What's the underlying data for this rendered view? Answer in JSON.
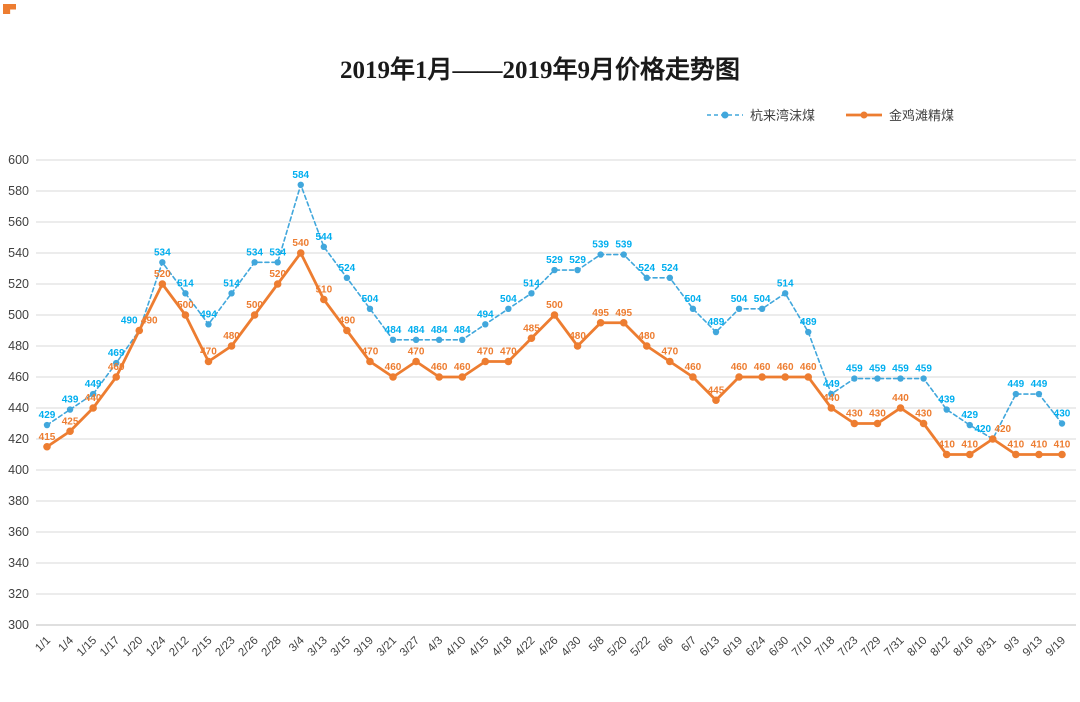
{
  "window": {
    "background": "#FFFFFF"
  },
  "corner_mark": {
    "color": "#ED7D31"
  },
  "title": "2019年1月——2019年9月价格走势图",
  "legend": {
    "position": "top-right",
    "items": [
      {
        "label": "杭来湾沫煤",
        "color": "#41A7DC",
        "style": "dashed"
      },
      {
        "label": "金鸡滩精煤",
        "color": "#ED7D31",
        "style": "solid"
      }
    ]
  },
  "chart_data": {
    "type": "line",
    "title": "2019年1月——2019年9月价格走势图",
    "categories": [
      "1/1",
      "1/4",
      "1/15",
      "1/17",
      "1/20",
      "1/24",
      "2/12",
      "2/15",
      "2/23",
      "2/26",
      "2/28",
      "3/4",
      "3/13",
      "3/15",
      "3/19",
      "3/21",
      "3/27",
      "4/3",
      "4/10",
      "4/15",
      "4/18",
      "4/22",
      "4/26",
      "4/30",
      "5/8",
      "5/20",
      "5/22",
      "6/6",
      "6/7",
      "6/13",
      "6/19",
      "6/24",
      "6/30",
      "7/10",
      "7/18",
      "7/23",
      "7/29",
      "7/31",
      "8/10",
      "8/12",
      "8/16",
      "8/31",
      "9/3",
      "9/13",
      "9/19"
    ],
    "series": [
      {
        "name": "杭来湾沫煤",
        "color": "#41A7DC",
        "label_color": "#00AEEF",
        "line_style": "dashed",
        "values": [
          429,
          439,
          449,
          469,
          490,
          534,
          514,
          494,
          514,
          534,
          534,
          584,
          544,
          524,
          504,
          484,
          484,
          484,
          484,
          494,
          504,
          514,
          529,
          529,
          539,
          539,
          524,
          524,
          504,
          489,
          504,
          504,
          514,
          489,
          449,
          459,
          459,
          459,
          459,
          439,
          429,
          420,
          449,
          449,
          430
        ]
      },
      {
        "name": "金鸡滩精煤",
        "color": "#ED7D31",
        "label_color": "#ED7D31",
        "line_style": "solid",
        "values": [
          415,
          425,
          440,
          460,
          490,
          520,
          500,
          470,
          480,
          500,
          520,
          540,
          510,
          490,
          470,
          460,
          470,
          460,
          460,
          470,
          470,
          485,
          500,
          480,
          495,
          495,
          480,
          470,
          460,
          445,
          460,
          460,
          460,
          460,
          440,
          430,
          430,
          440,
          430,
          410,
          410,
          420,
          410,
          410,
          410
        ]
      }
    ],
    "ylim": [
      300,
      600
    ],
    "yticks": [
      300,
      320,
      340,
      360,
      380,
      400,
      420,
      440,
      460,
      480,
      500,
      520,
      540,
      560,
      580,
      600
    ],
    "grid": "horizontal",
    "legend_position": "top-right",
    "x_label_rotation": -45
  }
}
